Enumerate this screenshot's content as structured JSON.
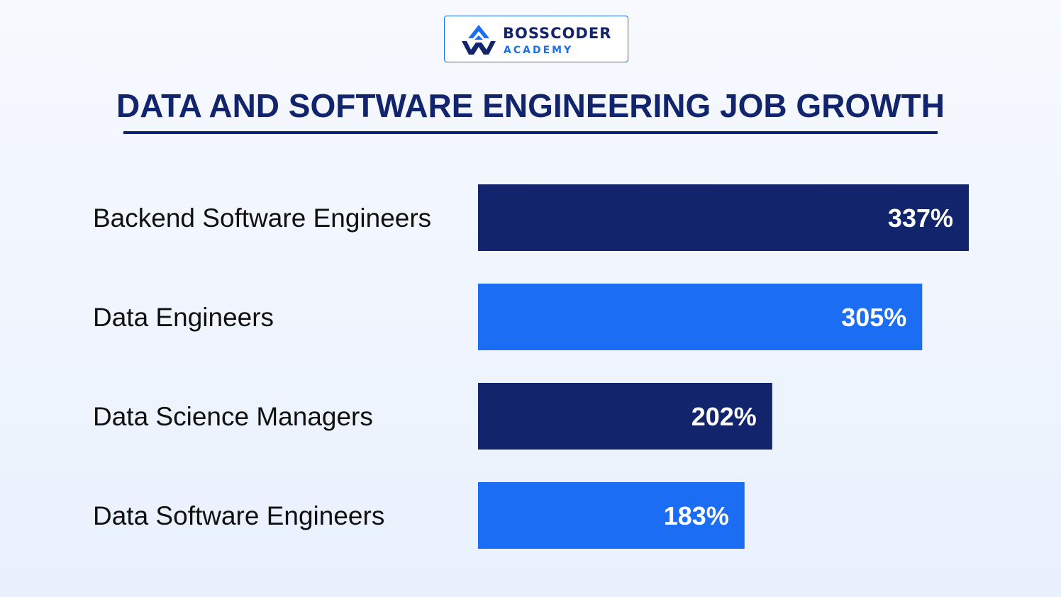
{
  "logo": {
    "line1": "BOSSCODER",
    "line2": "ACADEMY"
  },
  "colors": {
    "navy": "#12246b",
    "blue": "#1b6ef3"
  },
  "chart_data": {
    "type": "bar",
    "orientation": "horizontal",
    "title": "DATA AND SOFTWARE ENGINEERING JOB GROWTH",
    "categories": [
      "Backend Software Engineers",
      "Data Engineers",
      "Data Science Managers",
      "Data Software Engineers"
    ],
    "values": [
      337,
      305,
      202,
      183
    ],
    "value_labels": [
      "337%",
      "305%",
      "202%",
      "183%"
    ],
    "bar_colors": [
      "#12246b",
      "#1b6ef3",
      "#12246b",
      "#1b6ef3"
    ],
    "unit": "%",
    "grid": false,
    "legend": "none"
  }
}
